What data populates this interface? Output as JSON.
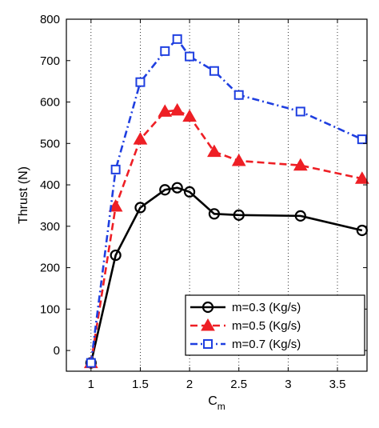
{
  "chart_data": {
    "type": "line",
    "title": "",
    "xlabel": "C",
    "xlabel_subscript": "m",
    "ylabel": "Thrust (N)",
    "xlim": [
      0.75,
      3.8
    ],
    "ylim": [
      -50,
      800
    ],
    "xticks": [
      1,
      1.5,
      2,
      2.5,
      3,
      3.5
    ],
    "xtick_labels": [
      "1",
      "1.5",
      "2",
      "2.5",
      "3",
      "3.5"
    ],
    "yticks": [
      0,
      100,
      200,
      300,
      400,
      500,
      600,
      700,
      800
    ],
    "ytick_labels": [
      "0",
      "100",
      "200",
      "300",
      "400",
      "500",
      "600",
      "700",
      "800"
    ],
    "grid": "vertical dotted",
    "legend_position": "bottom-right",
    "series": [
      {
        "name": "m=0.3 (Kg/s)",
        "color": "#000000",
        "line_style": "solid",
        "marker": "circle",
        "x": [
          1,
          1.25,
          1.5,
          1.75,
          1.875,
          2,
          2.25,
          2.5,
          3.125,
          3.75
        ],
        "y": [
          -30,
          230,
          345,
          388,
          393,
          383,
          330,
          327,
          325,
          290
        ]
      },
      {
        "name": "m=0.5 (Kg/s)",
        "color": "#ee1f25",
        "line_style": "dashed",
        "marker": "triangle",
        "x": [
          1,
          1.25,
          1.5,
          1.75,
          1.875,
          2,
          2.25,
          2.5,
          3.125,
          3.75
        ],
        "y": [
          -30,
          348,
          510,
          577,
          580,
          565,
          480,
          458,
          447,
          415
        ]
      },
      {
        "name": "m=0.7 (Kg/s)",
        "color": "#1f3fe0",
        "line_style": "dashdot",
        "marker": "square",
        "x": [
          1,
          1.25,
          1.5,
          1.75,
          1.875,
          2,
          2.25,
          2.5,
          3.125,
          3.75
        ],
        "y": [
          -30,
          437,
          648,
          723,
          752,
          710,
          675,
          617,
          577,
          510
        ]
      }
    ]
  }
}
